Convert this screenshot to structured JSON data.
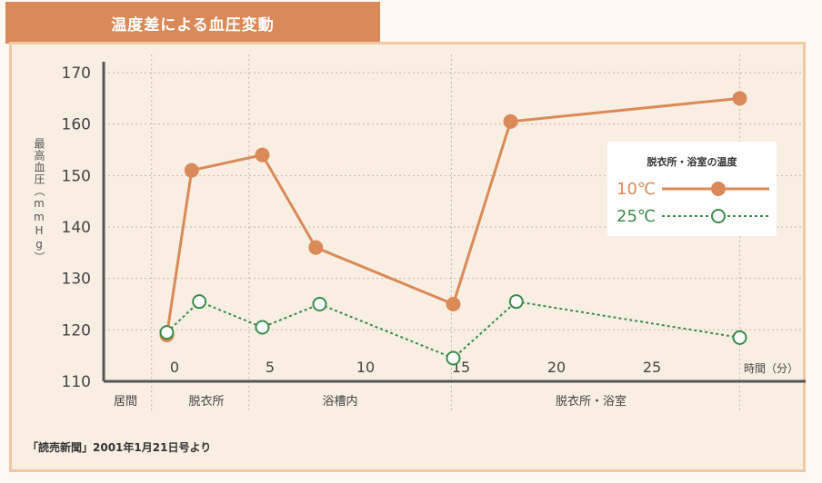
{
  "chart_data": {
    "type": "line",
    "title": "温度差による血圧変動",
    "ylabel": "最高血圧（mmHg）",
    "xlabel": "時間（分）",
    "ylim": [
      110,
      170
    ],
    "yticks": [
      110,
      120,
      130,
      140,
      150,
      160,
      170
    ],
    "xticks": [
      0,
      5,
      10,
      15,
      20,
      25
    ],
    "phases": [
      "居間",
      "脱衣所",
      "浴槽内",
      "脱衣所・浴室"
    ],
    "legend_title": "脱衣所・浴室の温度",
    "grid": true,
    "legend_position": "right",
    "series": [
      {
        "name": "10℃",
        "color": "#d98a58",
        "marker": "filled",
        "line_style": "solid",
        "x": [
          -0.5,
          0.8,
          4.5,
          7.3,
          14.5,
          17.5,
          29.5
        ],
        "y": [
          119,
          151,
          154,
          136,
          125,
          160.5,
          165
        ]
      },
      {
        "name": "25℃",
        "color": "#3b8a4a",
        "marker": "open",
        "line_style": "dotted",
        "x": [
          -0.5,
          1.2,
          4.5,
          7.5,
          14.5,
          17.8,
          29.5
        ],
        "y": [
          119.5,
          125.5,
          120.5,
          125,
          114.5,
          125.5,
          118.5
        ]
      }
    ]
  },
  "source": "「読売新聞」2001年1月21日号より"
}
